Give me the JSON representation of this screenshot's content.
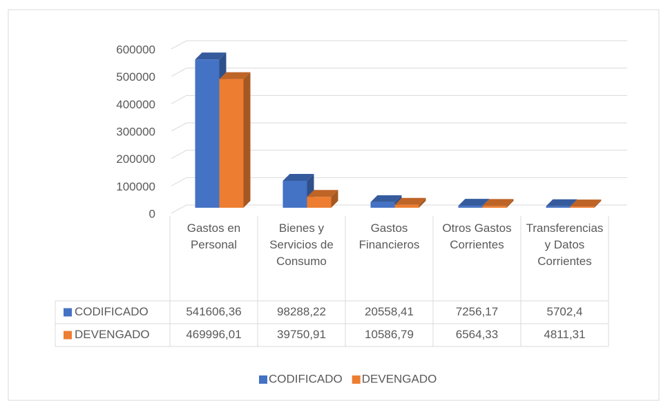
{
  "chart_data": {
    "type": "bar3d",
    "categories": [
      "Gastos en Personal",
      "Bienes y Servicios de Consumo",
      "Gastos Financieros",
      "Otros Gastos Corrientes",
      "Transferencias y Datos Corrientes"
    ],
    "series": [
      {
        "name": "CODIFICADO",
        "color": "#4472c4",
        "values": [
          541606.36,
          98288.22,
          20558.41,
          7256.17,
          5702.4
        ],
        "value_labels": [
          "541606,36",
          "98288,22",
          "20558,41",
          "7256,17",
          "5702,4"
        ]
      },
      {
        "name": "DEVENGADO",
        "color": "#ed7d31",
        "values": [
          469996.01,
          39750.91,
          10586.79,
          6564.33,
          4811.31
        ],
        "value_labels": [
          "469996,01",
          "39750,91",
          "10586,79",
          "6564,33",
          "4811,31"
        ]
      }
    ],
    "ylim": [
      0,
      600000
    ],
    "yticks": [
      0,
      100000,
      200000,
      300000,
      400000,
      500000,
      600000
    ],
    "grid": true,
    "legend": "bottom"
  }
}
